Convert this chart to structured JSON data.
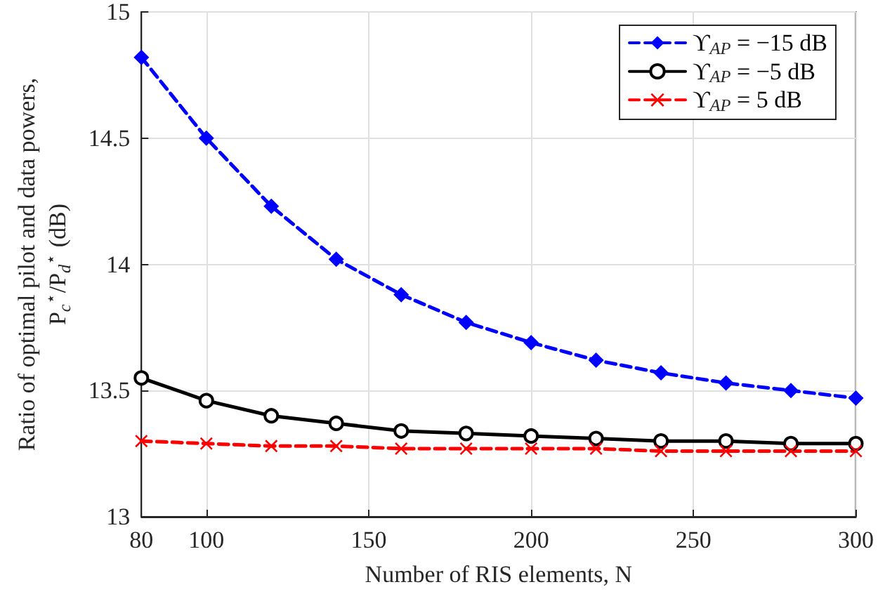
{
  "chart_data": {
    "type": "line",
    "xlabel": "Number of RIS elements, N",
    "ylabel": "Ratio of optimal pilot and data powers,\nP$_{c}$$^{⋆}$/P$_{d}$$^{⋆}$ (dB)",
    "x": [
      80,
      100,
      120,
      140,
      160,
      180,
      200,
      220,
      240,
      260,
      280,
      300
    ],
    "series": [
      {
        "name": "ϒ$_{AP}$ = −15 dB",
        "color": "#0000ff",
        "marker": "diamond",
        "line_style": "dashed",
        "values": [
          14.82,
          14.5,
          14.23,
          14.02,
          13.88,
          13.77,
          13.69,
          13.62,
          13.57,
          13.53,
          13.5,
          13.47
        ]
      },
      {
        "name": "ϒ$_{AP}$ = −5 dB",
        "color": "#000000",
        "marker": "circle",
        "line_style": "solid",
        "values": [
          13.55,
          13.46,
          13.4,
          13.37,
          13.34,
          13.33,
          13.32,
          13.31,
          13.3,
          13.3,
          13.29,
          13.29
        ]
      },
      {
        "name": "ϒ$_{AP}$ = 5 dB",
        "color": "#ff0000",
        "marker": "cross",
        "line_style": "dashed",
        "values": [
          13.3,
          13.29,
          13.28,
          13.28,
          13.27,
          13.27,
          13.27,
          13.27,
          13.26,
          13.26,
          13.26,
          13.26
        ]
      }
    ],
    "xlim": [
      80,
      300
    ],
    "xticks": [
      80,
      100,
      150,
      200,
      250,
      300
    ],
    "ylim": [
      13,
      15
    ],
    "yticks": [
      13,
      13.5,
      14,
      14.5,
      15
    ],
    "grid": true,
    "legend": "top right"
  }
}
